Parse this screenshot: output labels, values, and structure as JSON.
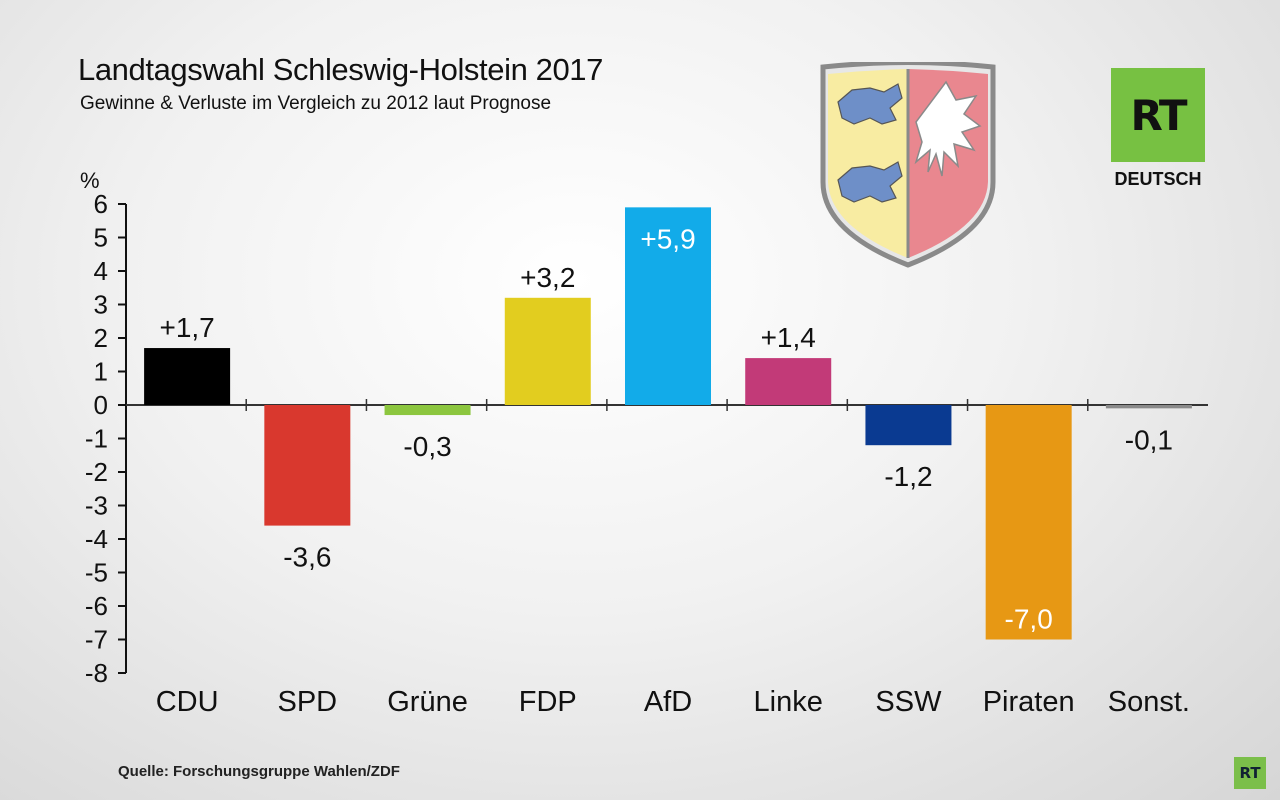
{
  "header": {
    "title": "Landtagswahl Schleswig-Holstein 2017",
    "subtitle": "Gewinne & Verluste im Vergleich zu 2012 laut Prognose"
  },
  "source": "Quelle: Forschungsgruppe Wahlen/ZDF",
  "logo": {
    "mark": "RT",
    "sub": "DEUTSCH",
    "small_mark": "RT",
    "color": "#77c142"
  },
  "coat_of_arms": {
    "icon": "schleswig-holstein-coat-of-arms-icon"
  },
  "chart_data": {
    "type": "bar",
    "title": "Landtagswahl Schleswig-Holstein 2017",
    "subtitle": "Gewinne & Verluste im Vergleich zu 2012 laut Prognose",
    "ylabel": "%",
    "xlabel": "",
    "ylim": [
      -8,
      6
    ],
    "yticks": [
      "6",
      "5",
      "4",
      "3",
      "2",
      "1",
      "0",
      "-1",
      "-2",
      "-3",
      "-4",
      "-5",
      "-6",
      "-7",
      "-8"
    ],
    "categories": [
      "CDU",
      "SPD",
      "Grüne",
      "FDP",
      "AfD",
      "Linke",
      "SSW",
      "Piraten",
      "Sonst."
    ],
    "values": [
      1.7,
      -3.6,
      -0.3,
      3.2,
      5.9,
      1.4,
      -1.2,
      -7.0,
      -0.1
    ],
    "labels": [
      "+1,7",
      "-3,6",
      "-0,3",
      "+3,2",
      "+5,9",
      "+1,4",
      "-1,2",
      "-7,0",
      "-0,1"
    ],
    "label_inside": [
      false,
      false,
      false,
      false,
      true,
      false,
      false,
      true,
      false
    ],
    "colors": [
      "#000000",
      "#d9382e",
      "#8cc63f",
      "#e2cd1f",
      "#12abe9",
      "#c23a78",
      "#0a3a91",
      "#e79814",
      "#8a8a8a"
    ]
  }
}
